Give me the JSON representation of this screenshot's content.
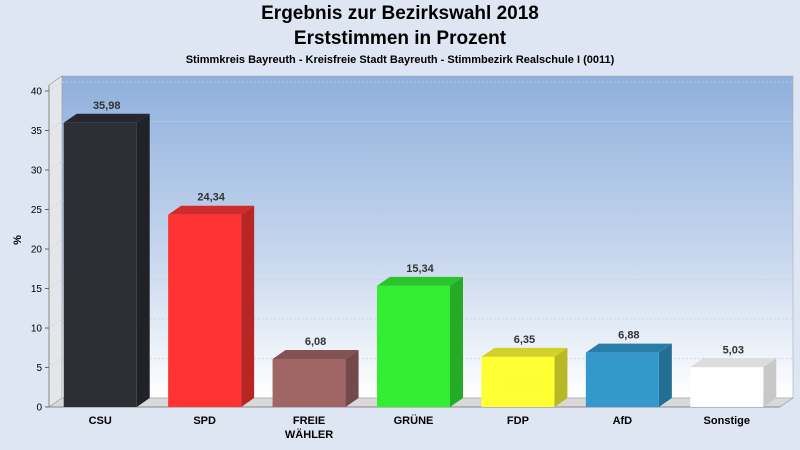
{
  "chart_data": {
    "type": "bar",
    "title": "Ergebnis zur Bezirkswahl 2018",
    "subtitle": "Erststimmen in Prozent",
    "caption": "Stimmkreis Bayreuth - Kreisfreie Stadt Bayreuth - Stimmbezirk Realschule I (0011)",
    "ylabel": "%",
    "xlabel": "",
    "ylim": [
      0,
      40
    ],
    "yticks": [
      "0",
      "5",
      "10",
      "15",
      "20",
      "25",
      "30",
      "35",
      "40"
    ],
    "grid": true,
    "categories": [
      "CSU",
      "SPD",
      "FREIE\nWÄHLER",
      "GRÜNE",
      "FDP",
      "AfD",
      "Sonstige"
    ],
    "values": [
      35.98,
      24.34,
      6.08,
      15.34,
      6.35,
      6.88,
      5.03
    ],
    "value_labels": [
      "35,98",
      "24,34",
      "6,08",
      "15,34",
      "6,35",
      "6,88",
      "5,03"
    ],
    "colors": [
      "#2d2f36",
      "#ff3333",
      "#a06565",
      "#33ee33",
      "#ffff33",
      "#3399cc",
      "#ffffff"
    ]
  }
}
